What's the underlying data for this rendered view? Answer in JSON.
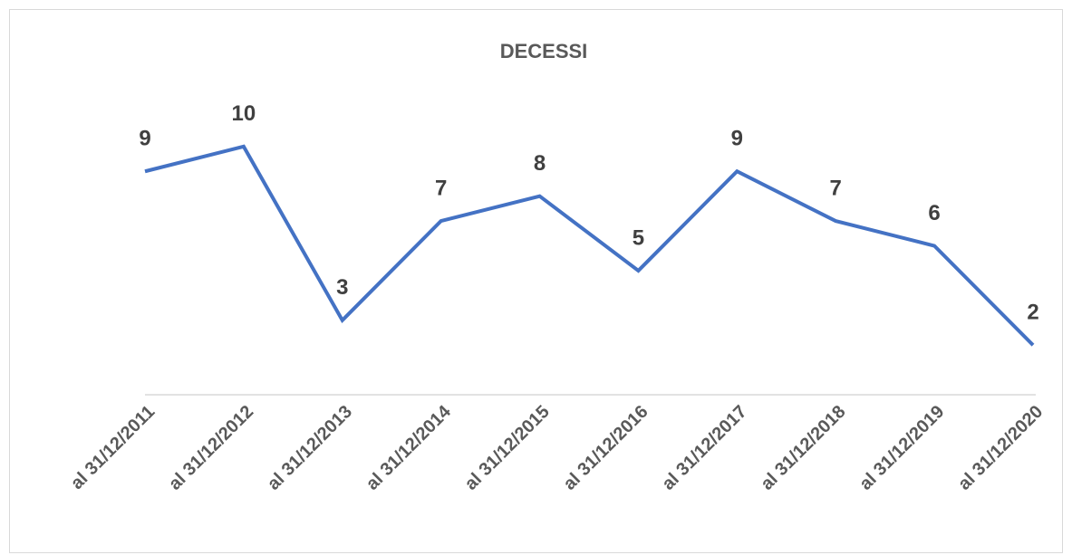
{
  "chart_data": {
    "type": "line",
    "title": "DECESSI",
    "categories": [
      "al 31/12/2011",
      "al 31/12/2012",
      "al 31/12/2013",
      "al 31/12/2014",
      "al 31/12/2015",
      "al 31/12/2016",
      "al 31/12/2017",
      "al 31/12/2018",
      "al 31/12/2019",
      "al 31/12/2020"
    ],
    "series": [
      {
        "name": "DECESSI",
        "color": "#4472c4",
        "values": [
          9,
          10,
          3,
          7,
          8,
          5,
          9,
          7,
          6,
          2
        ]
      }
    ],
    "ylim": [
      0,
      12
    ]
  }
}
